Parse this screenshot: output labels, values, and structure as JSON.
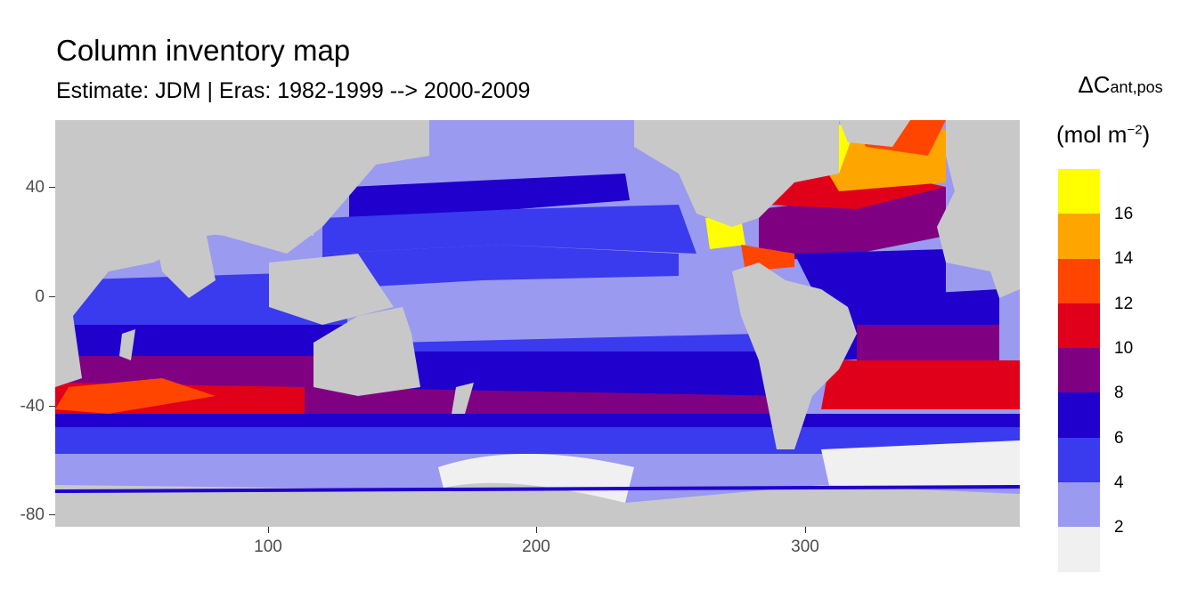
{
  "title": "Column inventory map",
  "subtitle": "Estimate: JDM  | Eras: 1982-1999 --> 2000-2009",
  "legend": {
    "title_main": "ΔC",
    "title_sub": "ant,pos",
    "unit_prefix": "(mol m",
    "unit_exp": "−2",
    "unit_suffix": ")",
    "labels": [
      "16",
      "14",
      "12",
      "10",
      "8",
      "6",
      "4",
      "2"
    ],
    "colors": [
      "#ffff00",
      "#ffa500",
      "#ff4500",
      "#e0001a",
      "#7f0080",
      "#1f00cc",
      "#3a3aee",
      "#9a9af0",
      "#f0f0f0"
    ]
  },
  "axes": {
    "y_ticks": [
      "40",
      "0",
      "-40",
      "-80"
    ],
    "x_ticks": [
      "100",
      "200",
      "300"
    ]
  },
  "map_data": {
    "x_range": [
      20,
      380
    ],
    "y_range": [
      -85,
      65
    ],
    "land_color": "#c8c8c8"
  }
}
